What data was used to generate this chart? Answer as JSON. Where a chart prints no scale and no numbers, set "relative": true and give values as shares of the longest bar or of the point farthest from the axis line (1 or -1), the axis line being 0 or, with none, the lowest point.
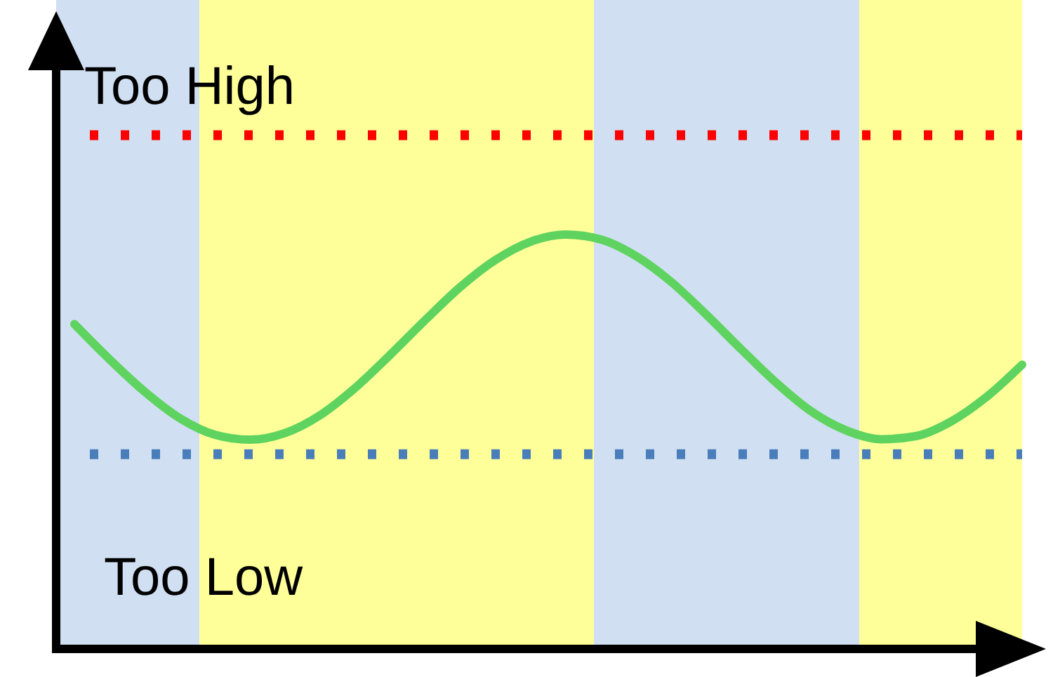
{
  "chart_data": {
    "type": "line",
    "relative": true,
    "categories": [
      null,
      null,
      null,
      null,
      null,
      null,
      null,
      null,
      null,
      null,
      null,
      null,
      null,
      null,
      null,
      null,
      null,
      null,
      null,
      null,
      null,
      null,
      null,
      null,
      null,
      null,
      null,
      null
    ],
    "series": [
      {
        "color": "#5fd35f",
        "values": [
          0.784,
          0.699,
          0.621,
          0.557,
          0.517,
          0.505,
          0.521,
          0.564,
          0.63,
          0.71,
          0.794,
          0.874,
          0.939,
          0.983,
          1.0,
          0.988,
          0.948,
          0.886,
          0.807,
          0.723,
          0.642,
          0.573,
          0.527,
          0.506,
          0.514,
          0.55,
          0.609,
          0.686
        ]
      }
    ],
    "ref_lines": [
      {
        "axis": "y",
        "value": 1.24,
        "label": "Too High",
        "color": "#ff0000",
        "line_style": "dotted"
      },
      {
        "axis": "y",
        "value": 0.47,
        "label": "Too Low",
        "color": "#4a7ebb",
        "line_style": "dotted"
      }
    ],
    "line_style": "solid"
  }
}
